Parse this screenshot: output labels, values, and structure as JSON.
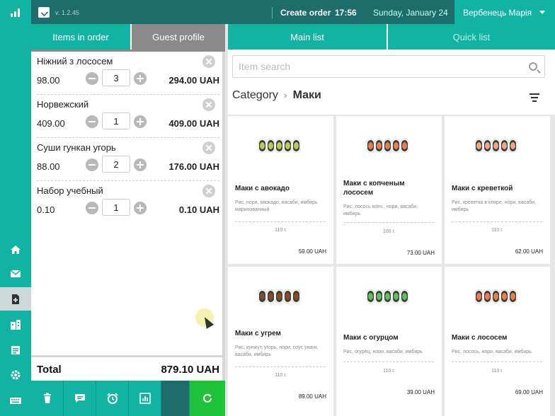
{
  "topbar": {
    "version": "v. 1.2.45",
    "create_order": "Create order",
    "time": "17:56",
    "date": "Sunday, January 24",
    "user": "Вербенець Марія"
  },
  "left_nav": [
    "home-icon",
    "mail-icon",
    "order-icon",
    "building-icon",
    "book-icon",
    "settings-icon",
    "keyboard-icon"
  ],
  "order": {
    "tabs": {
      "items": "Items in order",
      "guest": "Guest profile"
    },
    "items": [
      {
        "name": "Ніжний з лососем",
        "price": "98.00",
        "qty": "3",
        "total": "294.00 UAH"
      },
      {
        "name": "Норвежский",
        "price": "409.00",
        "qty": "1",
        "total": "409.00 UAH"
      },
      {
        "name": "Суши гункан угорь",
        "price": "88.00",
        "qty": "2",
        "total": "176.00 UAH"
      },
      {
        "name": "Набор учебный",
        "price": "0.10",
        "qty": "1",
        "total": "0.10 UAH"
      }
    ],
    "total_label": "Total",
    "total_value": "879.10 UAH"
  },
  "menu": {
    "tabs": {
      "main": "Main list",
      "quick": "Quick list"
    },
    "search_placeholder": "Item search",
    "breadcrumb": {
      "root": "Category",
      "current": "Маки"
    },
    "products": [
      {
        "name": "Маки с авокадо",
        "desc": "Рис, нори, авокадо, васаби, имбирь маринованный",
        "weight": "110 г.",
        "price": "59.00 UAH",
        "filling": "avocado"
      },
      {
        "name": "Маки с копченым лососем",
        "desc": "Рис, лосось копч., нори, васаби, имбирь",
        "weight": "100 г.",
        "price": "73.00 UAH",
        "filling": "salmon"
      },
      {
        "name": "Маки с креветкой",
        "desc": "Рис, креветка в кляре, нори, васаби, имбирь",
        "weight": "110 г.",
        "price": "62.00 UAH",
        "filling": "shrimp"
      },
      {
        "name": "Маки с угрем",
        "desc": "Рис, кунжут, угорь, нори, соус унаги, васаби, имбирь",
        "weight": "110 г.",
        "price": "89.00 UAH",
        "filling": "eel"
      },
      {
        "name": "Маки с огурцом",
        "desc": "Рис, огурец, нори, васаби, имбирь",
        "weight": "110 г.",
        "price": "39.00 UAH",
        "filling": "cucumber"
      },
      {
        "name": "Маки с лососем",
        "desc": "Рис, лосось, нори, васаби, имбирь",
        "weight": "110 г.",
        "price": "69.00 UAH",
        "filling": "salmon"
      }
    ]
  },
  "colors": {
    "teal": "#12b3a3",
    "dark_teal": "#1e6d6d",
    "green": "#1ec33a",
    "gray_tab": "#8a8a8a"
  }
}
